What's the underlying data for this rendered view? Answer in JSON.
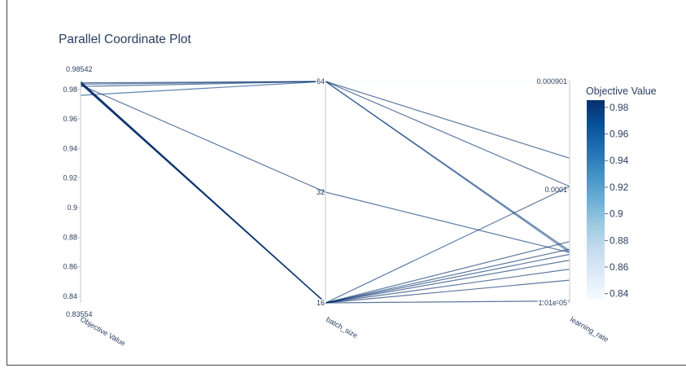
{
  "title": "Parallel Coordinate Plot",
  "colors": {
    "text": "#2a3f5f",
    "axis": "#d0d0d0",
    "colorscale": [
      "#f7fbff",
      "#deebf7",
      "#c6dbef",
      "#9ecae1",
      "#6baed6",
      "#4292c6",
      "#2171b5",
      "#08519c",
      "#08306b"
    ]
  },
  "chart_data": {
    "type": "parallel_coordinates",
    "title": "Parallel Coordinate Plot",
    "dimensions": [
      {
        "label": "Objective Value",
        "range": [
          0.83554,
          0.98542
        ],
        "scale": "linear",
        "tick_values": [
          0.84,
          0.86,
          0.88,
          0.9,
          0.92,
          0.94,
          0.96,
          0.98
        ],
        "tick_labels": [
          "0.84",
          "0.86",
          "0.88",
          "0.9",
          "0.92",
          "0.94",
          "0.96",
          "0.98"
        ],
        "range_labels": [
          "0.83554",
          "0.98542"
        ]
      },
      {
        "label": "batch_size",
        "range": [
          16,
          64
        ],
        "scale": "log",
        "tick_values": [
          16,
          32,
          64
        ],
        "tick_labels": [
          "16",
          "32",
          "64"
        ]
      },
      {
        "label": "learning_rate",
        "range": [
          1.01e-05,
          0.000901
        ],
        "scale": "log",
        "tick_values": [
          1.01e-05,
          0.0001,
          0.000901
        ],
        "tick_labels": [
          "1.01e-05",
          "0.0001",
          "0.000901"
        ]
      }
    ],
    "trials": [
      {
        "objective": 0.9854,
        "batch_size": 16,
        "learning_rate": 1.05e-05
      },
      {
        "objective": 0.9852,
        "batch_size": 16,
        "learning_rate": 1.6e-05
      },
      {
        "objective": 0.985,
        "batch_size": 16,
        "learning_rate": 2e-05
      },
      {
        "objective": 0.9848,
        "batch_size": 16,
        "learning_rate": 2.4e-05
      },
      {
        "objective": 0.9846,
        "batch_size": 16,
        "learning_rate": 2.7e-05
      },
      {
        "objective": 0.9843,
        "batch_size": 16,
        "learning_rate": 3e-05
      },
      {
        "objective": 0.984,
        "batch_size": 16,
        "learning_rate": 3.5e-05
      },
      {
        "objective": 0.9838,
        "batch_size": 16,
        "learning_rate": 0.000107
      },
      {
        "objective": 0.9845,
        "batch_size": 64,
        "learning_rate": 0.00019
      },
      {
        "objective": 0.9836,
        "batch_size": 64,
        "learning_rate": 0.000107
      },
      {
        "objective": 0.982,
        "batch_size": 64,
        "learning_rate": 2.9e-05
      },
      {
        "objective": 0.976,
        "batch_size": 64,
        "learning_rate": 2.8e-05
      },
      {
        "objective": 0.983,
        "batch_size": 32,
        "learning_rate": 2.8e-05
      },
      {
        "objective": 0.8355,
        "batch_size": 64,
        "learning_rate": 0.000901
      },
      {
        "objective": 0.8358,
        "batch_size": 32,
        "learning_rate": 0.00085
      }
    ],
    "colorbar": {
      "title": "Objective Value",
      "range": [
        0.83554,
        0.98542
      ],
      "tick_values": [
        0.84,
        0.86,
        0.88,
        0.9,
        0.92,
        0.94,
        0.96,
        0.98
      ],
      "tick_labels": [
        "0.84",
        "0.86",
        "0.88",
        "0.9",
        "0.92",
        "0.94",
        "0.96",
        "0.98"
      ]
    }
  }
}
